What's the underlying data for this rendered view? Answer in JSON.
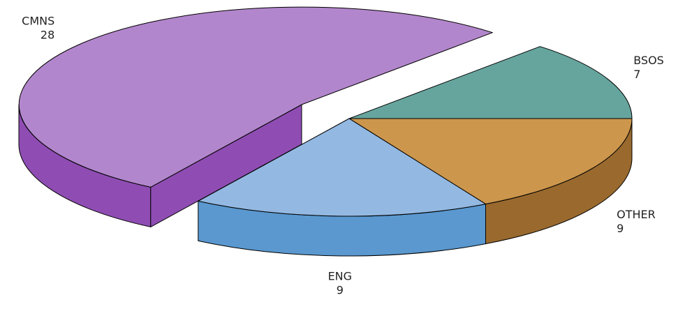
{
  "chart_data": {
    "type": "pie",
    "categories": [
      "OTHER",
      "ENG",
      "CMNS",
      "BSOS"
    ],
    "values": [
      9,
      9,
      28,
      7
    ],
    "colors": [
      "#cc964c",
      "#93b9e2",
      "#b286cc",
      "#66a59e"
    ],
    "side_colors": [
      "#99692e",
      "#5a98cf",
      "#8f4db3",
      "#4d8a83"
    ]
  }
}
